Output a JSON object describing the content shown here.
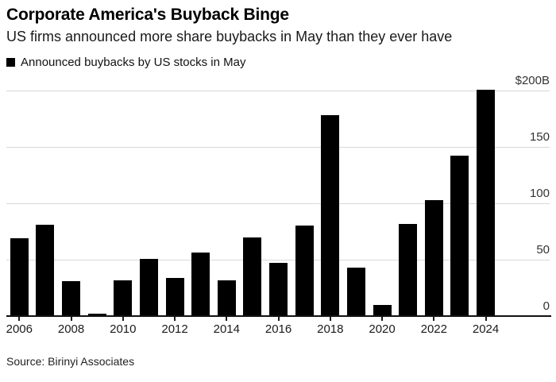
{
  "header": {
    "title": "Corporate America's Buyback Binge",
    "subtitle": "US firms announced more share buybacks in May than they ever have"
  },
  "legend": {
    "label": "Announced buybacks by US stocks in May",
    "swatch_color": "#000000"
  },
  "source": "Source: Birinyi Associates",
  "colors": {
    "bar": "#000000",
    "gridline": "#d8d8d8",
    "baseline": "#111111",
    "background": "#ffffff"
  },
  "chart_data": {
    "type": "bar",
    "title": "Corporate America's Buyback Binge",
    "subtitle": "US firms announced more share buybacks in May than they ever have",
    "series_name": "Announced buybacks by US stocks in May",
    "unit": "USD billions",
    "categories": [
      "2006",
      "2007",
      "2008",
      "2009",
      "2010",
      "2011",
      "2012",
      "2013",
      "2014",
      "2015",
      "2016",
      "2017",
      "2018",
      "2019",
      "2020",
      "2021",
      "2022",
      "2023",
      "2024"
    ],
    "values": [
      69,
      81,
      31,
      2,
      32,
      51,
      34,
      56,
      32,
      70,
      47,
      80,
      178,
      43,
      10,
      82,
      103,
      142,
      201
    ],
    "xlabel": "",
    "ylabel": "$B",
    "ylim": [
      0,
      200
    ],
    "yticks": [
      {
        "value": 200,
        "label": "$200B"
      },
      {
        "value": 150,
        "label": "150"
      },
      {
        "value": 100,
        "label": "100"
      },
      {
        "value": 50,
        "label": "50"
      },
      {
        "value": 0,
        "label": "0"
      }
    ],
    "xtick_labels": [
      "2006",
      "2008",
      "2010",
      "2012",
      "2014",
      "2016",
      "2018",
      "2020",
      "2022",
      "2024"
    ],
    "grid": "horizontal",
    "legend_position": "top-left",
    "y_axis_side": "right",
    "bar_color": "#000000"
  }
}
